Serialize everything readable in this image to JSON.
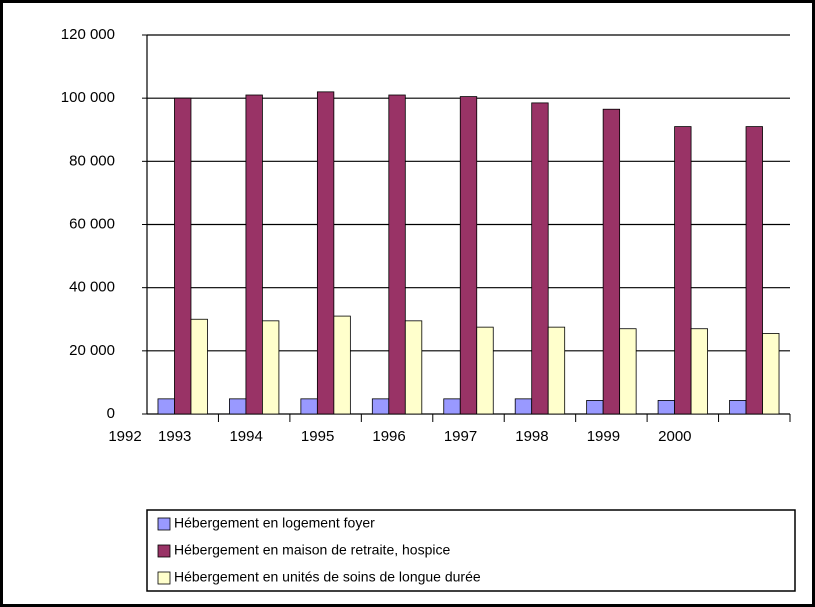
{
  "chart_data": {
    "type": "bar",
    "xaxis_start_label": "1992",
    "categories": [
      "1993",
      "1994",
      "1995",
      "1996",
      "1997",
      "1998",
      "1999",
      "2000",
      null
    ],
    "series": [
      {
        "name": "Hébergement en logement foyer",
        "color": "#9999ff",
        "values": [
          4800,
          4800,
          4800,
          4800,
          4800,
          4800,
          4300,
          4300,
          4300
        ]
      },
      {
        "name": "Hébergement en maison de retraite, hospice",
        "color": "#993366",
        "values": [
          100000,
          101000,
          102000,
          101000,
          100500,
          98500,
          96500,
          91000,
          91000
        ]
      },
      {
        "name": "Hébergement en unités de soins de longue durée",
        "color": "#ffffcc",
        "values": [
          30000,
          29500,
          31000,
          29500,
          27500,
          27500,
          27000,
          27000,
          25500
        ]
      }
    ],
    "ylim": [
      0,
      120000
    ],
    "yticks": [
      0,
      {
        "value": 20000,
        "label": "20 000"
      },
      {
        "value": 40000,
        "label": "40 000"
      },
      {
        "value": 60000,
        "label": "60 000"
      },
      {
        "value": 80000,
        "label": "80 000"
      },
      {
        "value": 100000,
        "label": "100 000"
      },
      {
        "value": 120000,
        "label": "120 000"
      }
    ],
    "grid": true
  }
}
